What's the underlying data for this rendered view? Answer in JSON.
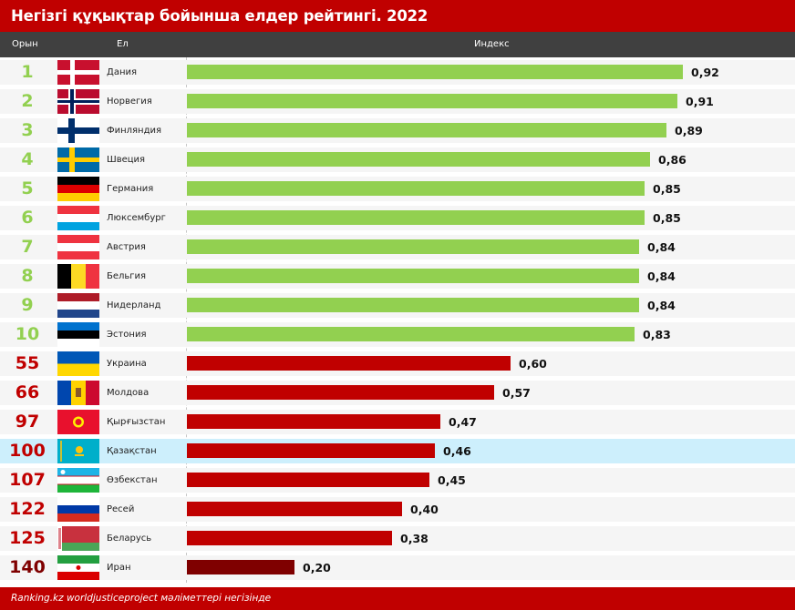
{
  "title": "Негізгі құқықтар бойынша елдер рейтингі. 2022",
  "headers": {
    "rank": "Орын",
    "country": "Ел",
    "index": "Индекс"
  },
  "footer": "Ranking.kz worldjusticeproject мәліметтері негізінде",
  "colors": {
    "top": "#92d050",
    "low": "#c00000",
    "lowest": "#7f0000",
    "highlight": "#cdeffc"
  },
  "chart_data": {
    "type": "bar",
    "orientation": "horizontal",
    "title": "Негізгі құқықтар бойынша елдер рейтингі. 2022",
    "xlabel": "Индекс",
    "ylabel": "Ел",
    "xlim": [
      0,
      1
    ],
    "grid": false,
    "highlighted": "Қазақстан",
    "rows": [
      {
        "rank": "1",
        "country": "Дания",
        "value": 0.92,
        "label": "0,92",
        "flag": "denmark",
        "group": "top"
      },
      {
        "rank": "2",
        "country": "Норвегия",
        "value": 0.91,
        "label": "0,91",
        "flag": "norway",
        "group": "top"
      },
      {
        "rank": "3",
        "country": "Финляндия",
        "value": 0.89,
        "label": "0,89",
        "flag": "finland",
        "group": "top"
      },
      {
        "rank": "4",
        "country": "Швеция",
        "value": 0.86,
        "label": "0,86",
        "flag": "sweden",
        "group": "top"
      },
      {
        "rank": "5",
        "country": "Германия",
        "value": 0.85,
        "label": "0,85",
        "flag": "germany",
        "group": "top"
      },
      {
        "rank": "6",
        "country": "Люксембург",
        "value": 0.85,
        "label": "0,85",
        "flag": "luxembourg",
        "group": "top"
      },
      {
        "rank": "7",
        "country": "Австрия",
        "value": 0.84,
        "label": "0,84",
        "flag": "austria",
        "group": "top"
      },
      {
        "rank": "8",
        "country": "Бельгия",
        "value": 0.84,
        "label": "0,84",
        "flag": "belgium",
        "group": "top"
      },
      {
        "rank": "9",
        "country": "Нидерланд",
        "value": 0.84,
        "label": "0,84",
        "flag": "netherlands",
        "group": "top"
      },
      {
        "rank": "10",
        "country": "Эстония",
        "value": 0.83,
        "label": "0,83",
        "flag": "estonia",
        "group": "top"
      },
      {
        "rank": "55",
        "country": "Украина",
        "value": 0.6,
        "label": "0,60",
        "flag": "ukraine",
        "group": "low"
      },
      {
        "rank": "66",
        "country": "Молдова",
        "value": 0.57,
        "label": "0,57",
        "flag": "moldova",
        "group": "low"
      },
      {
        "rank": "97",
        "country": "Қырғызстан",
        "value": 0.47,
        "label": "0,47",
        "flag": "kyrgyzstan",
        "group": "low"
      },
      {
        "rank": "100",
        "country": "Қазақстан",
        "value": 0.46,
        "label": "0,46",
        "flag": "kazakhstan",
        "group": "low",
        "highlight": true
      },
      {
        "rank": "107",
        "country": "Өзбекстан",
        "value": 0.45,
        "label": "0,45",
        "flag": "uzbekistan",
        "group": "low"
      },
      {
        "rank": "122",
        "country": "Ресей",
        "value": 0.4,
        "label": "0,40",
        "flag": "russia",
        "group": "low"
      },
      {
        "rank": "125",
        "country": "Беларусь",
        "value": 0.38,
        "label": "0,38",
        "flag": "belarus",
        "group": "low"
      },
      {
        "rank": "140",
        "country": "Иран",
        "value": 0.2,
        "label": "0,20",
        "flag": "iran",
        "group": "lowest"
      }
    ]
  }
}
